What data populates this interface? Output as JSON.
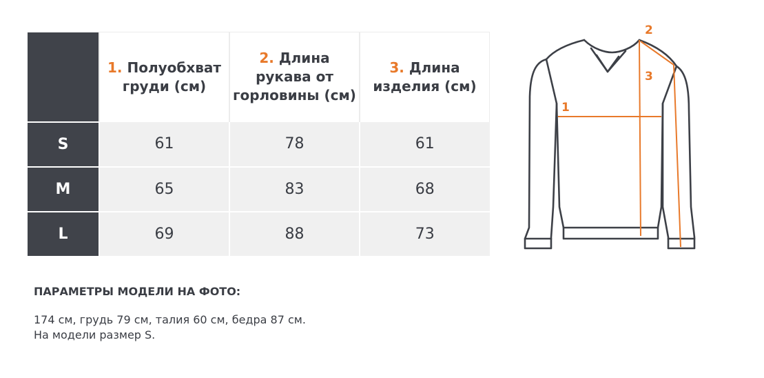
{
  "table": {
    "headers": [
      {
        "num": "1.",
        "text": "Полуобхват груди (см)"
      },
      {
        "num": "2.",
        "text": "Длина рукава от горловины (см)"
      },
      {
        "num": "3.",
        "text": "Длина изделия (см)"
      }
    ],
    "rows": [
      {
        "size": "S",
        "values": [
          "61",
          "78",
          "61"
        ]
      },
      {
        "size": "M",
        "values": [
          "65",
          "83",
          "68"
        ]
      },
      {
        "size": "L",
        "values": [
          "69",
          "88",
          "73"
        ]
      }
    ]
  },
  "model": {
    "heading": "ПАРАМЕТРЫ МОДЕЛИ НА ФОТО:",
    "line1": "174 см, грудь 79 см, талия 60 см, бедра 87 см.",
    "line2": "На модели размер S."
  },
  "diagram": {
    "markers": [
      "1",
      "2",
      "3"
    ]
  },
  "colors": {
    "accent": "#e8792a",
    "dark": "#40434a",
    "row_bg": "#f0f0f0"
  }
}
